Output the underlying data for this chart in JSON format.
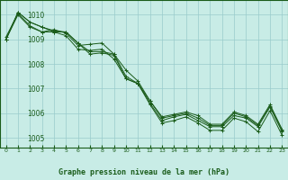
{
  "title": "Graphe pression niveau de la mer (hPa)",
  "bg_color": "#c8ece6",
  "grid_color": "#99cccc",
  "line_color": "#1a5c1a",
  "text_color": "#1a5c1a",
  "xlim": [
    -0.5,
    23.5
  ],
  "ylim": [
    1004.6,
    1010.6
  ],
  "yticks": [
    1005,
    1006,
    1007,
    1008,
    1009,
    1010
  ],
  "xticks": [
    0,
    1,
    2,
    3,
    4,
    5,
    6,
    7,
    8,
    9,
    10,
    11,
    12,
    13,
    14,
    15,
    16,
    17,
    18,
    19,
    20,
    21,
    22,
    23
  ],
  "series": [
    [
      1009.0,
      1010.1,
      1009.7,
      1009.5,
      1009.3,
      1009.3,
      1008.85,
      1008.5,
      1008.5,
      1008.4,
      1007.5,
      1007.2,
      1006.5,
      1005.8,
      1005.9,
      1006.0,
      1005.8,
      1005.5,
      1005.5,
      1006.0,
      1005.85,
      1005.5,
      1006.3,
      1005.3
    ],
    [
      1009.0,
      1010.1,
      1009.7,
      1009.5,
      1009.35,
      1009.3,
      1008.85,
      1008.4,
      1008.45,
      1008.35,
      1007.4,
      1007.2,
      1006.4,
      1005.7,
      1005.85,
      1005.95,
      1005.7,
      1005.45,
      1005.45,
      1005.9,
      1005.8,
      1005.45,
      1006.25,
      1005.25
    ],
    [
      1009.1,
      1010.05,
      1009.55,
      1009.3,
      1009.4,
      1009.25,
      1008.75,
      1008.8,
      1008.85,
      1008.4,
      1007.75,
      1007.3,
      1006.5,
      1005.85,
      1005.95,
      1006.05,
      1005.9,
      1005.55,
      1005.55,
      1006.05,
      1005.9,
      1005.55,
      1006.35,
      1005.35
    ],
    [
      1009.0,
      1010.0,
      1009.5,
      1009.3,
      1009.3,
      1009.15,
      1008.6,
      1008.55,
      1008.6,
      1008.2,
      1007.4,
      1007.2,
      1006.35,
      1005.6,
      1005.7,
      1005.85,
      1005.6,
      1005.3,
      1005.3,
      1005.8,
      1005.65,
      1005.25,
      1006.1,
      1005.1
    ]
  ]
}
